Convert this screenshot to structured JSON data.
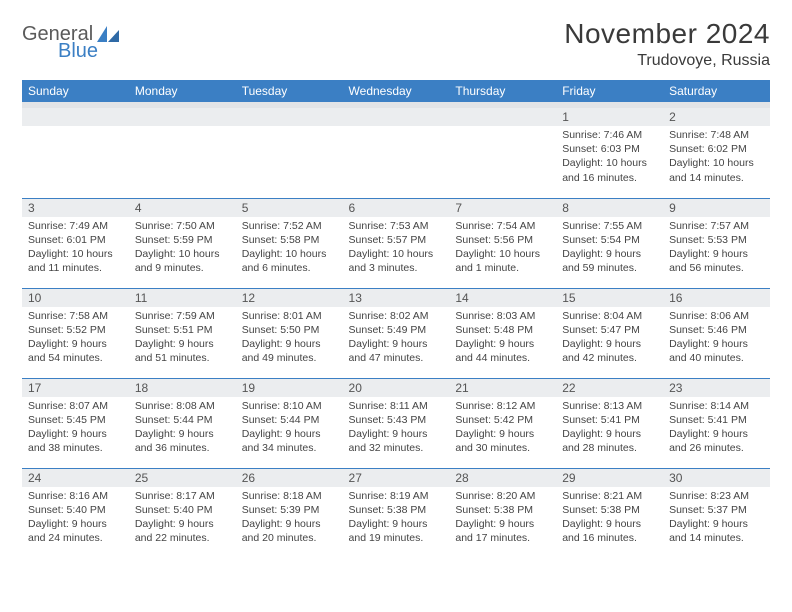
{
  "brand": {
    "line1": "General",
    "line2": "Blue"
  },
  "title": "November 2024",
  "location": "Trudovoye, Russia",
  "colors": {
    "accent": "#3b7fc4",
    "header_text": "#ffffff",
    "daynum_bg": "#ebedef",
    "text": "#444444",
    "title_text": "#3a3a3a"
  },
  "typography": {
    "title_fontsize": 28,
    "subtitle_fontsize": 16,
    "header_fontsize": 12,
    "body_fontsize": 10.5
  },
  "weekdays": [
    "Sunday",
    "Monday",
    "Tuesday",
    "Wednesday",
    "Thursday",
    "Friday",
    "Saturday"
  ],
  "weeks": [
    [
      null,
      null,
      null,
      null,
      null,
      {
        "n": "1",
        "sr": "Sunrise: 7:46 AM",
        "ss": "Sunset: 6:03 PM",
        "dl": "Daylight: 10 hours and 16 minutes."
      },
      {
        "n": "2",
        "sr": "Sunrise: 7:48 AM",
        "ss": "Sunset: 6:02 PM",
        "dl": "Daylight: 10 hours and 14 minutes."
      }
    ],
    [
      {
        "n": "3",
        "sr": "Sunrise: 7:49 AM",
        "ss": "Sunset: 6:01 PM",
        "dl": "Daylight: 10 hours and 11 minutes."
      },
      {
        "n": "4",
        "sr": "Sunrise: 7:50 AM",
        "ss": "Sunset: 5:59 PM",
        "dl": "Daylight: 10 hours and 9 minutes."
      },
      {
        "n": "5",
        "sr": "Sunrise: 7:52 AM",
        "ss": "Sunset: 5:58 PM",
        "dl": "Daylight: 10 hours and 6 minutes."
      },
      {
        "n": "6",
        "sr": "Sunrise: 7:53 AM",
        "ss": "Sunset: 5:57 PM",
        "dl": "Daylight: 10 hours and 3 minutes."
      },
      {
        "n": "7",
        "sr": "Sunrise: 7:54 AM",
        "ss": "Sunset: 5:56 PM",
        "dl": "Daylight: 10 hours and 1 minute."
      },
      {
        "n": "8",
        "sr": "Sunrise: 7:55 AM",
        "ss": "Sunset: 5:54 PM",
        "dl": "Daylight: 9 hours and 59 minutes."
      },
      {
        "n": "9",
        "sr": "Sunrise: 7:57 AM",
        "ss": "Sunset: 5:53 PM",
        "dl": "Daylight: 9 hours and 56 minutes."
      }
    ],
    [
      {
        "n": "10",
        "sr": "Sunrise: 7:58 AM",
        "ss": "Sunset: 5:52 PM",
        "dl": "Daylight: 9 hours and 54 minutes."
      },
      {
        "n": "11",
        "sr": "Sunrise: 7:59 AM",
        "ss": "Sunset: 5:51 PM",
        "dl": "Daylight: 9 hours and 51 minutes."
      },
      {
        "n": "12",
        "sr": "Sunrise: 8:01 AM",
        "ss": "Sunset: 5:50 PM",
        "dl": "Daylight: 9 hours and 49 minutes."
      },
      {
        "n": "13",
        "sr": "Sunrise: 8:02 AM",
        "ss": "Sunset: 5:49 PM",
        "dl": "Daylight: 9 hours and 47 minutes."
      },
      {
        "n": "14",
        "sr": "Sunrise: 8:03 AM",
        "ss": "Sunset: 5:48 PM",
        "dl": "Daylight: 9 hours and 44 minutes."
      },
      {
        "n": "15",
        "sr": "Sunrise: 8:04 AM",
        "ss": "Sunset: 5:47 PM",
        "dl": "Daylight: 9 hours and 42 minutes."
      },
      {
        "n": "16",
        "sr": "Sunrise: 8:06 AM",
        "ss": "Sunset: 5:46 PM",
        "dl": "Daylight: 9 hours and 40 minutes."
      }
    ],
    [
      {
        "n": "17",
        "sr": "Sunrise: 8:07 AM",
        "ss": "Sunset: 5:45 PM",
        "dl": "Daylight: 9 hours and 38 minutes."
      },
      {
        "n": "18",
        "sr": "Sunrise: 8:08 AM",
        "ss": "Sunset: 5:44 PM",
        "dl": "Daylight: 9 hours and 36 minutes."
      },
      {
        "n": "19",
        "sr": "Sunrise: 8:10 AM",
        "ss": "Sunset: 5:44 PM",
        "dl": "Daylight: 9 hours and 34 minutes."
      },
      {
        "n": "20",
        "sr": "Sunrise: 8:11 AM",
        "ss": "Sunset: 5:43 PM",
        "dl": "Daylight: 9 hours and 32 minutes."
      },
      {
        "n": "21",
        "sr": "Sunrise: 8:12 AM",
        "ss": "Sunset: 5:42 PM",
        "dl": "Daylight: 9 hours and 30 minutes."
      },
      {
        "n": "22",
        "sr": "Sunrise: 8:13 AM",
        "ss": "Sunset: 5:41 PM",
        "dl": "Daylight: 9 hours and 28 minutes."
      },
      {
        "n": "23",
        "sr": "Sunrise: 8:14 AM",
        "ss": "Sunset: 5:41 PM",
        "dl": "Daylight: 9 hours and 26 minutes."
      }
    ],
    [
      {
        "n": "24",
        "sr": "Sunrise: 8:16 AM",
        "ss": "Sunset: 5:40 PM",
        "dl": "Daylight: 9 hours and 24 minutes."
      },
      {
        "n": "25",
        "sr": "Sunrise: 8:17 AM",
        "ss": "Sunset: 5:40 PM",
        "dl": "Daylight: 9 hours and 22 minutes."
      },
      {
        "n": "26",
        "sr": "Sunrise: 8:18 AM",
        "ss": "Sunset: 5:39 PM",
        "dl": "Daylight: 9 hours and 20 minutes."
      },
      {
        "n": "27",
        "sr": "Sunrise: 8:19 AM",
        "ss": "Sunset: 5:38 PM",
        "dl": "Daylight: 9 hours and 19 minutes."
      },
      {
        "n": "28",
        "sr": "Sunrise: 8:20 AM",
        "ss": "Sunset: 5:38 PM",
        "dl": "Daylight: 9 hours and 17 minutes."
      },
      {
        "n": "29",
        "sr": "Sunrise: 8:21 AM",
        "ss": "Sunset: 5:38 PM",
        "dl": "Daylight: 9 hours and 16 minutes."
      },
      {
        "n": "30",
        "sr": "Sunrise: 8:23 AM",
        "ss": "Sunset: 5:37 PM",
        "dl": "Daylight: 9 hours and 14 minutes."
      }
    ]
  ]
}
